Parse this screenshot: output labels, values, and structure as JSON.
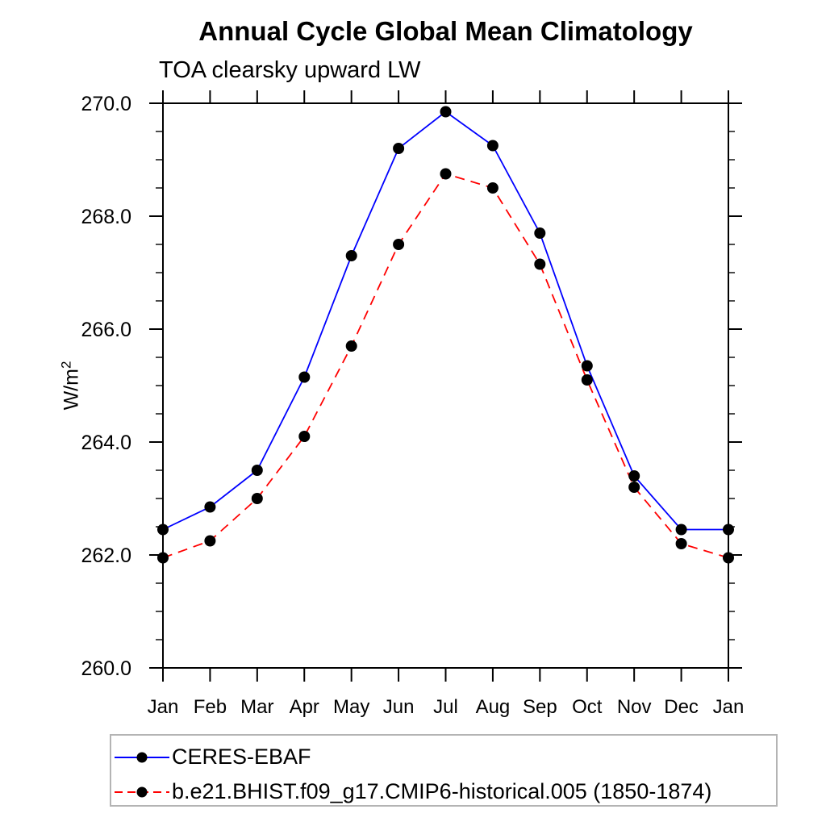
{
  "chart_data": {
    "type": "line",
    "title": "Annual Cycle Global Mean Climatology",
    "subtitle": "TOA clearsky upward LW",
    "ylabel": "W/m²",
    "ylabel_base": "W/m",
    "ylabel_exp": "2",
    "categories": [
      "Jan",
      "Feb",
      "Mar",
      "Apr",
      "May",
      "Jun",
      "Jul",
      "Aug",
      "Sep",
      "Oct",
      "Nov",
      "Dec",
      "Jan"
    ],
    "ylim": [
      260.0,
      270.0
    ],
    "y_major_ticks": [
      260,
      262,
      264,
      266,
      268,
      270
    ],
    "y_major_labels": [
      "260.0",
      "262.0",
      "264.0",
      "266.0",
      "268.0",
      "270.0"
    ],
    "y_minor_step": 0.5,
    "grid": false,
    "legend_position": "bottom-left",
    "axis_color": "#000000",
    "marker_color": "#000000",
    "series": [
      {
        "name": "CERES-EBAF",
        "color": "#0000ff",
        "line_style": "solid",
        "marker": "filled-circle",
        "values": [
          262.45,
          262.85,
          263.5,
          265.15,
          267.3,
          269.2,
          269.85,
          269.25,
          267.7,
          265.35,
          263.4,
          262.45,
          262.45
        ]
      },
      {
        "name": "b.e21.BHIST.f09_g17.CMIP6-historical.005 (1850-1874)",
        "color": "#ff0000",
        "line_style": "dashed",
        "marker": "filled-circle",
        "values": [
          261.95,
          262.25,
          263.0,
          264.1,
          265.7,
          267.5,
          268.75,
          268.5,
          267.15,
          265.1,
          263.2,
          262.2,
          261.95
        ]
      }
    ]
  }
}
